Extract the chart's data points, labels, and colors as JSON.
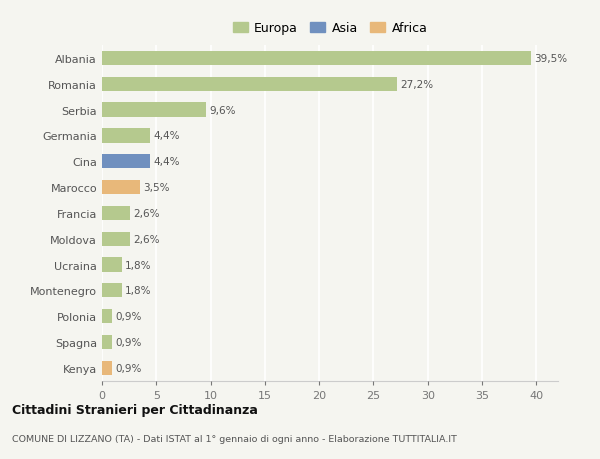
{
  "countries": [
    "Albania",
    "Romania",
    "Serbia",
    "Germania",
    "Cina",
    "Marocco",
    "Francia",
    "Moldova",
    "Ucraina",
    "Montenegro",
    "Polonia",
    "Spagna",
    "Kenya"
  ],
  "values": [
    39.5,
    27.2,
    9.6,
    4.4,
    4.4,
    3.5,
    2.6,
    2.6,
    1.8,
    1.8,
    0.9,
    0.9,
    0.9
  ],
  "labels": [
    "39,5%",
    "27,2%",
    "9,6%",
    "4,4%",
    "4,4%",
    "3,5%",
    "2,6%",
    "2,6%",
    "1,8%",
    "1,8%",
    "0,9%",
    "0,9%",
    "0,9%"
  ],
  "continent": [
    "Europa",
    "Europa",
    "Europa",
    "Europa",
    "Asia",
    "Africa",
    "Europa",
    "Europa",
    "Europa",
    "Europa",
    "Europa",
    "Europa",
    "Africa"
  ],
  "colors": {
    "Europa": "#b5c98e",
    "Asia": "#7090bf",
    "Africa": "#e8b87a"
  },
  "title": "Cittadini Stranieri per Cittadinanza",
  "subtitle": "COMUNE DI LIZZANO (TA) - Dati ISTAT al 1° gennaio di ogni anno - Elaborazione TUTTITALIA.IT",
  "xlim": [
    0,
    42
  ],
  "background_color": "#f5f5f0",
  "grid_color": "#ffffff",
  "bar_height": 0.55
}
